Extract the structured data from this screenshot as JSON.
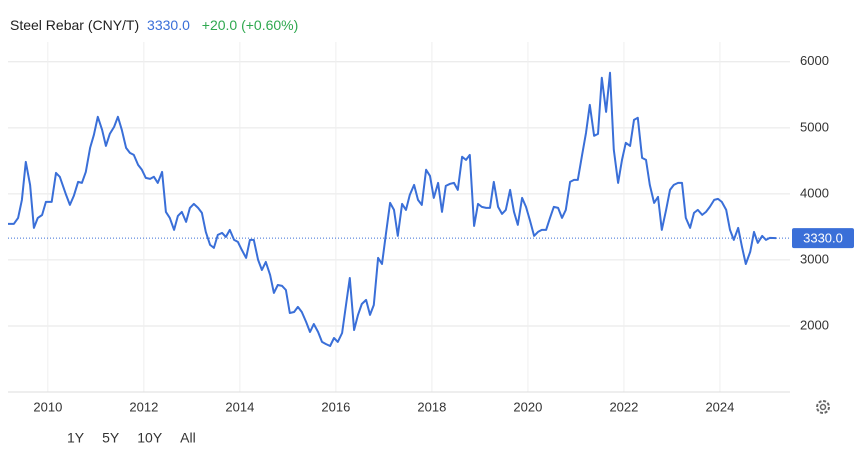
{
  "chart_data": {
    "type": "line",
    "title": "Steel Rebar (CNY/T)",
    "price_label": "3330.0",
    "change_label": "+20.0 (+0.60%)",
    "ranges": [
      "1Y",
      "5Y",
      "10Y",
      "All"
    ],
    "xlim": [
      2009.17,
      2025.46
    ],
    "xticks": [
      2010,
      2012,
      2014,
      2016,
      2018,
      2020,
      2022,
      2024
    ],
    "ylim": [
      1000,
      6300
    ],
    "yticks": [
      2000,
      3000,
      4000,
      5000,
      6000
    ],
    "grid": true,
    "x": [
      2009.17,
      2009.29,
      2009.38,
      2009.46,
      2009.54,
      2009.63,
      2009.71,
      2009.79,
      2009.88,
      2009.96,
      2010.08,
      2010.17,
      2010.25,
      2010.38,
      2010.46,
      2010.54,
      2010.63,
      2010.71,
      2010.79,
      2010.88,
      2010.96,
      2011.04,
      2011.13,
      2011.21,
      2011.29,
      2011.38,
      2011.46,
      2011.54,
      2011.63,
      2011.71,
      2011.79,
      2011.88,
      2011.96,
      2012.04,
      2012.13,
      2012.21,
      2012.29,
      2012.38,
      2012.46,
      2012.54,
      2012.63,
      2012.71,
      2012.79,
      2012.88,
      2012.96,
      2013.04,
      2013.13,
      2013.21,
      2013.29,
      2013.38,
      2013.46,
      2013.54,
      2013.63,
      2013.71,
      2013.79,
      2013.88,
      2013.96,
      2014.04,
      2014.13,
      2014.21,
      2014.29,
      2014.38,
      2014.46,
      2014.54,
      2014.63,
      2014.71,
      2014.79,
      2014.88,
      2014.96,
      2015.04,
      2015.13,
      2015.21,
      2015.29,
      2015.38,
      2015.46,
      2015.54,
      2015.63,
      2015.71,
      2015.79,
      2015.88,
      2015.96,
      2016.04,
      2016.13,
      2016.21,
      2016.29,
      2016.38,
      2016.46,
      2016.54,
      2016.63,
      2016.71,
      2016.79,
      2016.88,
      2016.96,
      2017.04,
      2017.13,
      2017.21,
      2017.29,
      2017.38,
      2017.46,
      2017.54,
      2017.63,
      2017.71,
      2017.79,
      2017.88,
      2017.96,
      2018.04,
      2018.13,
      2018.21,
      2018.29,
      2018.38,
      2018.46,
      2018.54,
      2018.63,
      2018.71,
      2018.79,
      2018.88,
      2018.96,
      2019.04,
      2019.13,
      2019.21,
      2019.29,
      2019.38,
      2019.46,
      2019.54,
      2019.63,
      2019.71,
      2019.79,
      2019.88,
      2019.96,
      2020.04,
      2020.13,
      2020.21,
      2020.29,
      2020.38,
      2020.46,
      2020.54,
      2020.63,
      2020.71,
      2020.79,
      2020.88,
      2020.96,
      2021.04,
      2021.13,
      2021.21,
      2021.29,
      2021.38,
      2021.46,
      2021.54,
      2021.63,
      2021.71,
      2021.79,
      2021.88,
      2021.96,
      2022.04,
      2022.13,
      2022.21,
      2022.29,
      2022.38,
      2022.46,
      2022.54,
      2022.63,
      2022.71,
      2022.79,
      2022.88,
      2022.96,
      2023.04,
      2023.13,
      2023.21,
      2023.29,
      2023.38,
      2023.46,
      2023.54,
      2023.63,
      2023.71,
      2023.79,
      2023.88,
      2023.96,
      2024.04,
      2024.13,
      2024.21,
      2024.29,
      2024.38,
      2024.46,
      2024.54,
      2024.63,
      2024.71,
      2024.79,
      2024.88,
      2024.96,
      2025.04,
      2025.17
    ],
    "series": [
      {
        "name": "Steel Rebar",
        "color": "#3a6fd8",
        "values": [
          3545,
          3545,
          3636,
          3909,
          4485,
          4136,
          3485,
          3636,
          3680,
          3879,
          3879,
          4318,
          4258,
          3985,
          3833,
          3970,
          4182,
          4167,
          4333,
          4697,
          4894,
          5167,
          4970,
          4727,
          4909,
          5015,
          5167,
          4970,
          4697,
          4621,
          4591,
          4439,
          4364,
          4242,
          4227,
          4258,
          4167,
          4333,
          3727,
          3636,
          3455,
          3667,
          3727,
          3576,
          3788,
          3848,
          3788,
          3712,
          3424,
          3227,
          3182,
          3379,
          3409,
          3348,
          3455,
          3303,
          3273,
          3152,
          3030,
          3303,
          3303,
          3000,
          2848,
          2970,
          2773,
          2500,
          2621,
          2606,
          2545,
          2197,
          2212,
          2288,
          2212,
          2061,
          1909,
          2030,
          1909,
          1758,
          1727,
          1697,
          1818,
          1758,
          1894,
          2318,
          2727,
          1939,
          2167,
          2333,
          2394,
          2167,
          2318,
          3030,
          2939,
          3379,
          3864,
          3758,
          3364,
          3848,
          3758,
          3985,
          4136,
          3909,
          3833,
          4364,
          4273,
          3939,
          4167,
          3727,
          4121,
          4152,
          4167,
          4061,
          4561,
          4515,
          4591,
          3515,
          3848,
          3803,
          3788,
          3788,
          4182,
          3803,
          3697,
          3758,
          4061,
          3727,
          3530,
          3939,
          3803,
          3606,
          3364,
          3424,
          3455,
          3455,
          3636,
          3803,
          3788,
          3636,
          3758,
          4182,
          4212,
          4212,
          4591,
          4924,
          5348,
          4879,
          4909,
          5758,
          5242,
          5833,
          4667,
          4167,
          4515,
          4773,
          4727,
          5121,
          5152,
          4545,
          4515,
          4136,
          3864,
          3955,
          3455,
          3758,
          4061,
          4136,
          4167,
          4167,
          3636,
          3485,
          3712,
          3758,
          3682,
          3727,
          3803,
          3909,
          3924,
          3879,
          3758,
          3455,
          3303,
          3485,
          3197,
          2939,
          3121,
          3424,
          3258,
          3364,
          3303,
          3333,
          3330
        ]
      }
    ]
  }
}
